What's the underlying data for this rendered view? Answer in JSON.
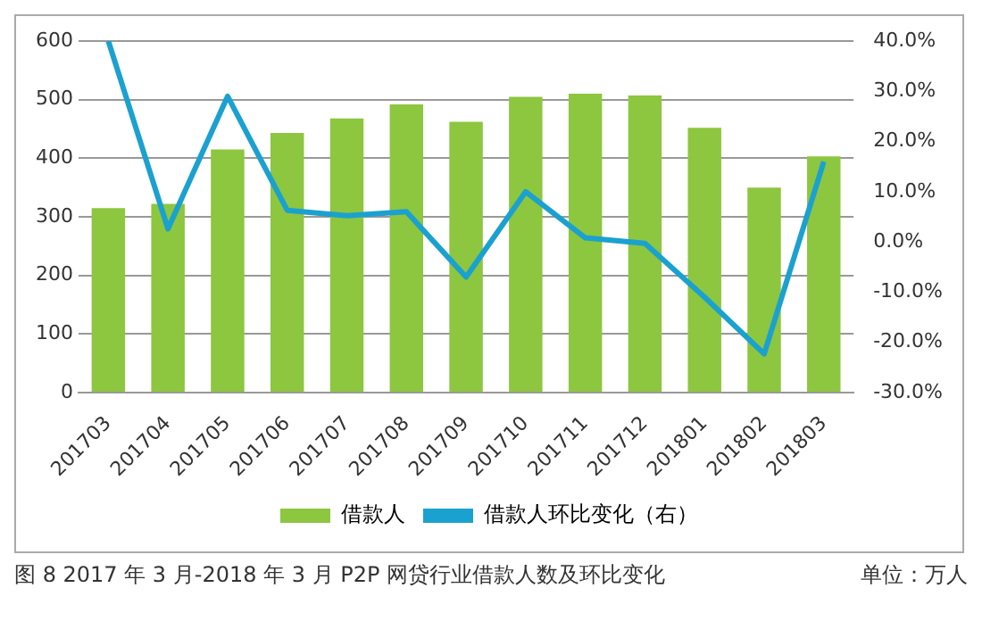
{
  "chart_data": {
    "type": "bar",
    "title": "图 8 2017 年 3 月-2018 年 3 月 P2P 网贷行业借款人数及环比变化",
    "annotations": [
      "单位：万人"
    ],
    "categories": [
      "201703",
      "201704",
      "201705",
      "201706",
      "201707",
      "201708",
      "201709",
      "201710",
      "201711",
      "201712",
      "201801",
      "201802",
      "201803"
    ],
    "series": [
      {
        "name": "借款人",
        "color": "#8dc63f",
        "values": [
          315,
          322,
          415,
          443,
          468,
          492,
          462,
          505,
          510,
          507,
          452,
          350,
          403
        ]
      },
      {
        "name": "借款人环比变化（右）",
        "type": "line",
        "axis": "y2",
        "color": "#1ba1d0",
        "values": [
          40.0,
          2.6,
          29,
          6.3,
          5.2,
          6,
          -7,
          10,
          0.8,
          -0.3,
          -11,
          -22.3,
          16
        ]
      }
    ],
    "ylim": [
      0,
      600
    ],
    "yticks": [
      0,
      100,
      200,
      300,
      400,
      500,
      600
    ],
    "y2lim": [
      -30,
      40
    ],
    "y2ticks": [
      {
        "value": -30,
        "label": "-30.0%"
      },
      {
        "value": -20,
        "label": "-20.0%"
      },
      {
        "value": -10,
        "label": "-10.0%"
      },
      {
        "value": 0,
        "label": "0.0%"
      },
      {
        "value": 10,
        "label": "10.0%"
      },
      {
        "value": 20,
        "label": "20.0%"
      },
      {
        "value": 30,
        "label": "30.0%"
      },
      {
        "value": 40,
        "label": "40.0%"
      }
    ],
    "grid": "y",
    "legend": "bottom",
    "marker": "none",
    "line_style": "solid"
  }
}
